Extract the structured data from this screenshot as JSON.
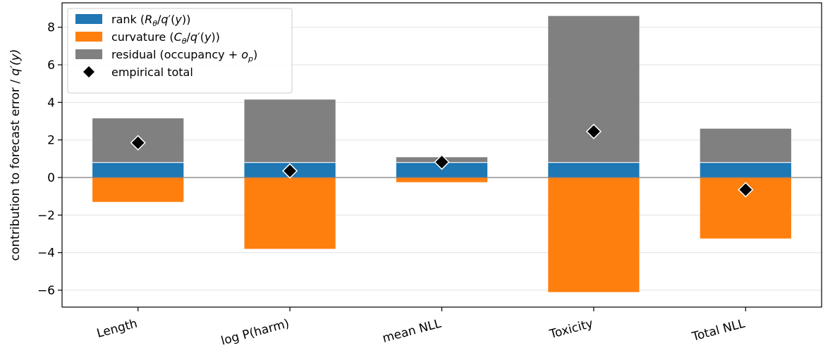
{
  "chart_data": {
    "type": "bar",
    "stacked": true,
    "categories": [
      "Length",
      "log P(harm)",
      "mean NLL",
      "Toxicity",
      "Total NLL"
    ],
    "ylabel": "contribution to forecast error / q′(y)",
    "ylim": [
      -6.9,
      9.3
    ],
    "yticks": [
      -6,
      -4,
      -2,
      0,
      2,
      4,
      6,
      8
    ],
    "ytick_labels": [
      "−6",
      "−4",
      "−2",
      "0",
      "2",
      "4",
      "6",
      "8"
    ],
    "grid": "horizontal",
    "legend_position": "upper-left",
    "series": [
      {
        "key": "rank",
        "name": "rank (Rθ/q′(y))",
        "color": "#1f77b4",
        "values": [
          0.8,
          0.8,
          0.8,
          0.8,
          0.8
        ]
      },
      {
        "key": "curvature",
        "name": "curvature (Cθ/q′(y))",
        "color": "#ff7f0e",
        "values": [
          -1.3,
          -3.8,
          -0.25,
          -6.1,
          -3.25
        ]
      },
      {
        "key": "residual",
        "name": "residual (occupancy + op)",
        "color": "#808080",
        "values": [
          2.35,
          3.35,
          0.28,
          7.8,
          1.8
        ]
      }
    ],
    "markers": {
      "name": "empirical total",
      "color": "#000000",
      "values": [
        1.85,
        0.35,
        0.82,
        2.45,
        -0.65
      ]
    }
  }
}
